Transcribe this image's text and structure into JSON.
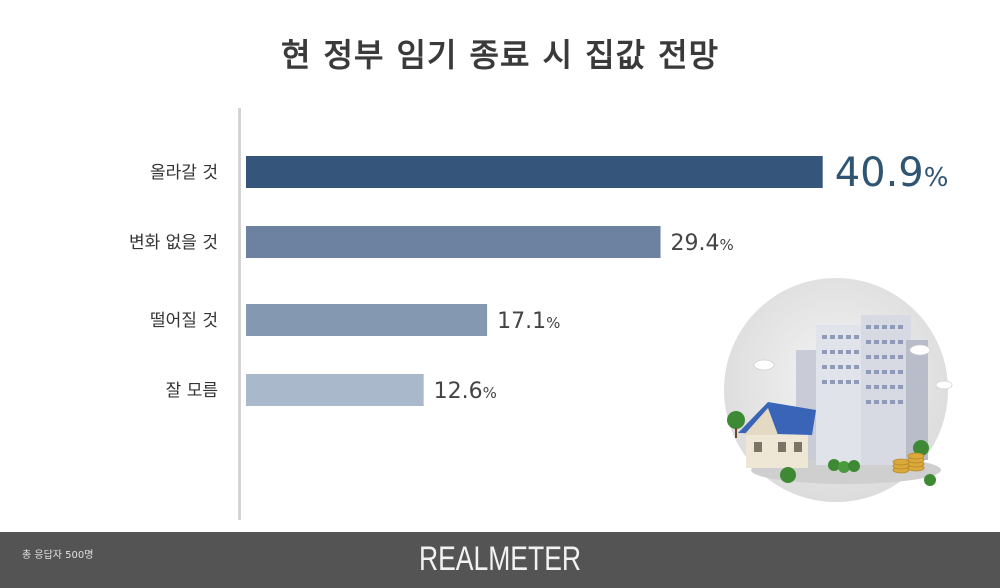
{
  "chart_data": {
    "type": "bar",
    "orientation": "horizontal",
    "title": "현 정부 임기 종료 시 집값 전망",
    "categories": [
      "올라갈 것",
      "변화 없을 것",
      "떨어질 것",
      "잘 모름"
    ],
    "values": [
      40.9,
      29.4,
      17.1,
      12.6
    ],
    "value_labels": [
      "40.9",
      "29.4",
      "17.1",
      "12.6"
    ],
    "unit": "%",
    "bar_colors": [
      "#36557a",
      "#6c82a0",
      "#8598b2",
      "#a9b8cb"
    ],
    "label_colors": [
      "#2f5573",
      "#444444",
      "#444444",
      "#444444"
    ],
    "grid": false,
    "legend": "none"
  },
  "footer": {
    "note": "총 응답자 500명",
    "brand": "REALMETER"
  },
  "illustration": {
    "icon": "city-buildings-house-coins-icon"
  }
}
